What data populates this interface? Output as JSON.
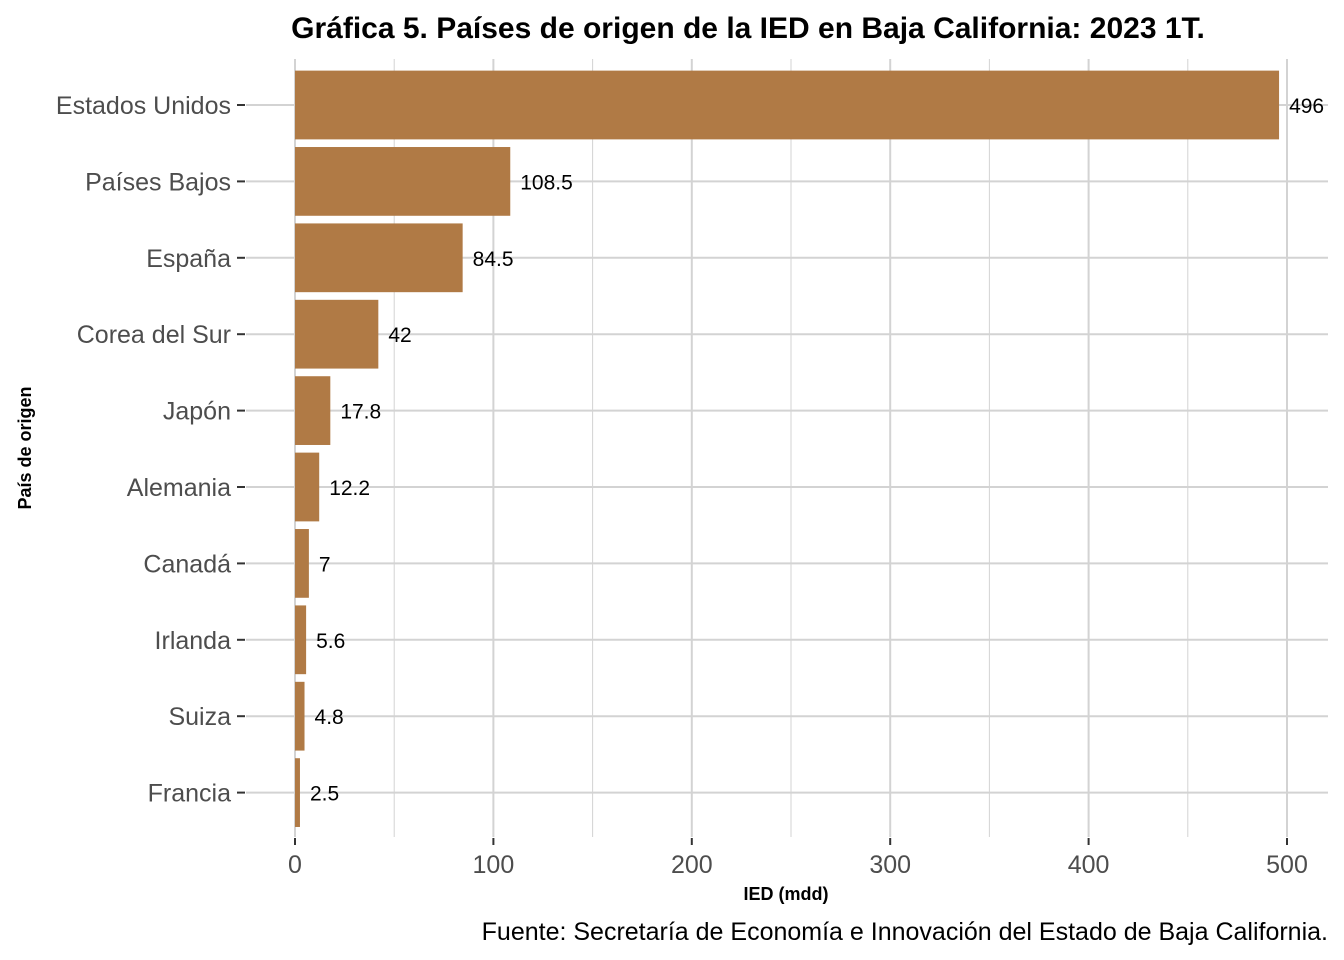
{
  "chart_data": {
    "type": "bar",
    "orientation": "horizontal",
    "title": "Gráfica 5. Países de origen de la IED en Baja California: 2023 1T.",
    "xlabel": "IED (mdd)",
    "ylabel": "País de origen",
    "caption": "Fuente: Secretaría de Economía e Innovación del Estado de Baja California.",
    "categories": [
      "Estados Unidos",
      "Países Bajos",
      "España",
      "Corea del Sur",
      "Japón",
      "Alemania",
      "Canadá",
      "Irlanda",
      "Suiza",
      "Francia"
    ],
    "values": [
      496,
      108.5,
      84.5,
      42,
      17.8,
      12.2,
      7,
      5.6,
      4.8,
      2.5
    ],
    "data_labels": [
      "496",
      "108.5",
      "84.5",
      "42",
      "17.8",
      "12.2",
      "7",
      "5.6",
      "4.8",
      "2.5"
    ],
    "xlim": [
      0,
      520.8
    ],
    "xticks": [
      0,
      100,
      200,
      300,
      400,
      500
    ],
    "xtick_labels": [
      "0",
      "100",
      "200",
      "300",
      "400",
      "500"
    ],
    "grid": true,
    "bar_color": "#B07A45",
    "grid_color": "#D3D3D3"
  }
}
